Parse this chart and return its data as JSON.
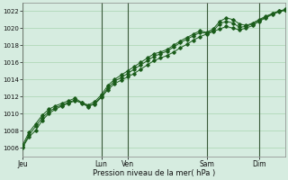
{
  "title": "",
  "xlabel": "Pression niveau de la mer( hPa )",
  "bg_color": "#d6ece0",
  "plot_bg_color": "#d6ece0",
  "grid_color": "#b0d8b8",
  "line_color": "#1a5c1a",
  "ylim": [
    1005.0,
    1023.0
  ],
  "yticks": [
    1006,
    1008,
    1010,
    1012,
    1014,
    1016,
    1018,
    1020,
    1022
  ],
  "day_labels": [
    "Jeu",
    "Lun",
    "Ven",
    "Sam",
    "Dim"
  ],
  "day_positions": [
    0,
    72,
    96,
    168,
    216
  ],
  "total_hours": 240,
  "series1_x": [
    0,
    6,
    12,
    18,
    24,
    30,
    36,
    42,
    48,
    54,
    60,
    66,
    72,
    78,
    84,
    90,
    96,
    102,
    108,
    114,
    120,
    126,
    132,
    138,
    144,
    150,
    156,
    162,
    168,
    174,
    180,
    186,
    192,
    198,
    204,
    210,
    216,
    222,
    228,
    234,
    240
  ],
  "series1_y": [
    1006.0,
    1007.3,
    1008.0,
    1009.2,
    1010.0,
    1010.5,
    1010.9,
    1011.2,
    1011.5,
    1011.3,
    1010.9,
    1011.1,
    1011.9,
    1012.8,
    1013.5,
    1013.9,
    1014.3,
    1014.7,
    1015.2,
    1015.7,
    1016.2,
    1016.5,
    1016.8,
    1017.2,
    1017.7,
    1018.1,
    1018.6,
    1019.0,
    1019.3,
    1019.6,
    1019.9,
    1020.2,
    1020.0,
    1019.8,
    1020.0,
    1020.3,
    1020.8,
    1021.2,
    1021.6,
    1021.9,
    1022.1
  ],
  "series2_x": [
    0,
    6,
    12,
    18,
    24,
    30,
    36,
    42,
    48,
    54,
    60,
    66,
    72,
    78,
    84,
    90,
    96,
    102,
    108,
    114,
    120,
    126,
    132,
    138,
    144,
    150,
    156,
    162,
    168,
    174,
    180,
    186,
    192,
    198,
    204,
    210,
    216,
    222,
    228,
    234,
    240
  ],
  "series2_y": [
    1006.3,
    1007.8,
    1008.8,
    1009.8,
    1010.5,
    1010.9,
    1011.2,
    1011.5,
    1011.8,
    1011.3,
    1011.0,
    1011.4,
    1012.2,
    1013.3,
    1014.0,
    1014.5,
    1015.0,
    1015.5,
    1016.0,
    1016.5,
    1017.0,
    1017.2,
    1017.5,
    1018.0,
    1018.5,
    1018.9,
    1019.3,
    1019.7,
    1019.5,
    1019.9,
    1020.8,
    1021.2,
    1021.0,
    1020.5,
    1020.3,
    1020.6,
    1021.0,
    1021.4,
    1021.7,
    1022.0,
    1022.2
  ],
  "series3_x": [
    0,
    6,
    12,
    18,
    24,
    30,
    36,
    42,
    48,
    54,
    60,
    66,
    72,
    78,
    84,
    90,
    96,
    102,
    108,
    114,
    120,
    126,
    132,
    138,
    144,
    150,
    156,
    162,
    168,
    174,
    180,
    186,
    192,
    198,
    204,
    210,
    216,
    222,
    228,
    234,
    240
  ],
  "series3_y": [
    1006.1,
    1007.5,
    1008.5,
    1009.5,
    1010.2,
    1010.7,
    1011.0,
    1011.3,
    1011.6,
    1011.2,
    1010.8,
    1011.2,
    1012.0,
    1013.0,
    1013.8,
    1014.2,
    1014.7,
    1015.2,
    1015.7,
    1016.2,
    1016.7,
    1017.0,
    1017.3,
    1017.8,
    1018.3,
    1018.7,
    1019.1,
    1019.5,
    1019.4,
    1019.7,
    1020.5,
    1020.8,
    1020.6,
    1020.1,
    1020.2,
    1020.5,
    1020.9,
    1021.3,
    1021.7,
    1022.0,
    1022.1
  ]
}
